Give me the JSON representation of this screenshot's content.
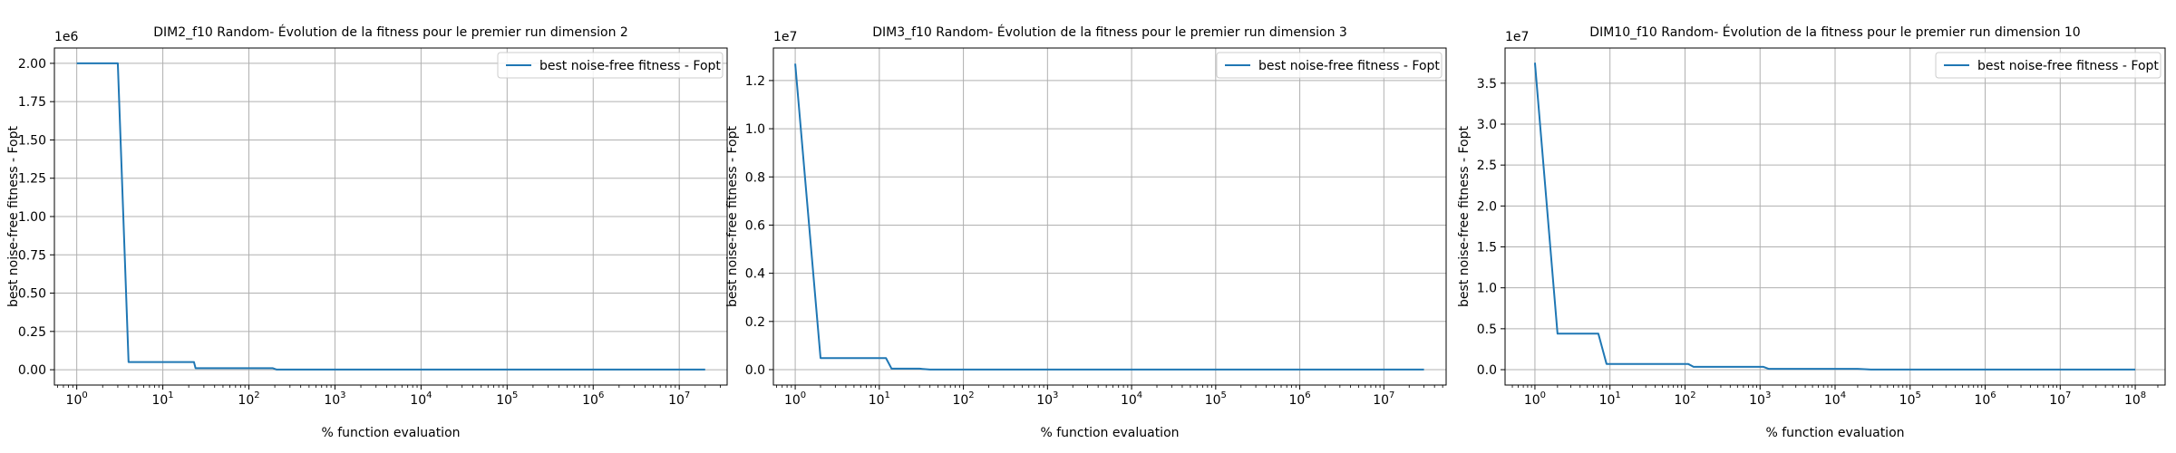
{
  "chart_data": [
    {
      "type": "line",
      "title": "DIM2_f10 Random- Évolution de la fitness pour le premier run dimension 2",
      "xlabel": "% function evaluation",
      "ylabel": "best noise-free fitness - Fopt",
      "xscale": "log",
      "xlim": [
        0.55,
        36000000
      ],
      "ylim": [
        -100000,
        2100000
      ],
      "y_offset_label": "1e6",
      "y_scale_factor": 1000000,
      "xticks": [
        1,
        10,
        100,
        1000,
        10000,
        100000,
        1000000,
        10000000
      ],
      "xtick_labels": [
        {
          "base": "10",
          "exp": "0"
        },
        {
          "base": "10",
          "exp": "1"
        },
        {
          "base": "10",
          "exp": "2"
        },
        {
          "base": "10",
          "exp": "3"
        },
        {
          "base": "10",
          "exp": "4"
        },
        {
          "base": "10",
          "exp": "5"
        },
        {
          "base": "10",
          "exp": "6"
        },
        {
          "base": "10",
          "exp": "7"
        }
      ],
      "yticks": [
        0,
        250000,
        500000,
        750000,
        1000000,
        1250000,
        1500000,
        1750000,
        2000000
      ],
      "ytick_labels": [
        "0.00",
        "0.25",
        "0.50",
        "0.75",
        "1.00",
        "1.25",
        "1.50",
        "1.75",
        "2.00"
      ],
      "grid": true,
      "legend_position": "top-right",
      "series": [
        {
          "name": "best noise-free fitness - Fopt",
          "color": "#1f77b4",
          "x": [
            1,
            3,
            4,
            23,
            24,
            190,
            210,
            20000000
          ],
          "y": [
            2000000,
            2000000,
            50000,
            50000,
            10000,
            10000,
            1000,
            1000
          ]
        }
      ]
    },
    {
      "type": "line",
      "title": "DIM3_f10 Random- Évolution de la fitness pour le premier run dimension 3",
      "xlabel": "% function evaluation",
      "ylabel": "best noise-free fitness - Fopt",
      "xscale": "log",
      "xlim": [
        0.55,
        55000000
      ],
      "ylim": [
        -640000,
        13350000
      ],
      "y_offset_label": "1e7",
      "y_scale_factor": 10000000,
      "xticks": [
        1,
        10,
        100,
        1000,
        10000,
        100000,
        1000000,
        10000000
      ],
      "xtick_labels": [
        {
          "base": "10",
          "exp": "0"
        },
        {
          "base": "10",
          "exp": "1"
        },
        {
          "base": "10",
          "exp": "2"
        },
        {
          "base": "10",
          "exp": "3"
        },
        {
          "base": "10",
          "exp": "4"
        },
        {
          "base": "10",
          "exp": "5"
        },
        {
          "base": "10",
          "exp": "6"
        },
        {
          "base": "10",
          "exp": "7"
        }
      ],
      "yticks": [
        0,
        2000000,
        4000000,
        6000000,
        8000000,
        10000000,
        12000000
      ],
      "ytick_labels": [
        "0.0",
        "0.2",
        "0.4",
        "0.6",
        "0.8",
        "1.0",
        "1.2"
      ],
      "grid": true,
      "legend_position": "top-right",
      "series": [
        {
          "name": "best noise-free fitness - Fopt",
          "color": "#1f77b4",
          "x": [
            1,
            2,
            12,
            14,
            30,
            40,
            30000000
          ],
          "y": [
            12700000,
            480000,
            480000,
            40000,
            40000,
            5000,
            5000
          ]
        }
      ]
    },
    {
      "type": "line",
      "title": "DIM10_f10 Random- Évolution de la fitness pour le premier run dimension 10",
      "xlabel": "% function evaluation",
      "ylabel": "best noise-free fitness - Fopt",
      "xscale": "log",
      "xlim": [
        0.4,
        250000000
      ],
      "ylim": [
        -1880000,
        39300000
      ],
      "y_offset_label": "1e7",
      "y_scale_factor": 10000000,
      "xticks": [
        1,
        10,
        100,
        1000,
        10000,
        100000,
        1000000,
        10000000,
        100000000
      ],
      "xtick_labels": [
        {
          "base": "10",
          "exp": "0"
        },
        {
          "base": "10",
          "exp": "1"
        },
        {
          "base": "10",
          "exp": "2"
        },
        {
          "base": "10",
          "exp": "3"
        },
        {
          "base": "10",
          "exp": "4"
        },
        {
          "base": "10",
          "exp": "5"
        },
        {
          "base": "10",
          "exp": "6"
        },
        {
          "base": "10",
          "exp": "7"
        },
        {
          "base": "10",
          "exp": "8"
        }
      ],
      "yticks": [
        0,
        5000000,
        10000000,
        15000000,
        20000000,
        25000000,
        30000000,
        35000000
      ],
      "ytick_labels": [
        "0.0",
        "0.5",
        "1.0",
        "1.5",
        "2.0",
        "2.5",
        "3.0",
        "3.5"
      ],
      "grid": true,
      "legend_position": "top-right",
      "series": [
        {
          "name": "best noise-free fitness - Fopt",
          "color": "#1f77b4",
          "x": [
            1,
            2,
            7,
            9,
            110,
            130,
            1100,
            1300,
            20000,
            30000,
            100000000
          ],
          "y": [
            37500000,
            4400000,
            4400000,
            700000,
            700000,
            350000,
            350000,
            100000,
            100000,
            20000,
            20000
          ]
        }
      ]
    }
  ]
}
